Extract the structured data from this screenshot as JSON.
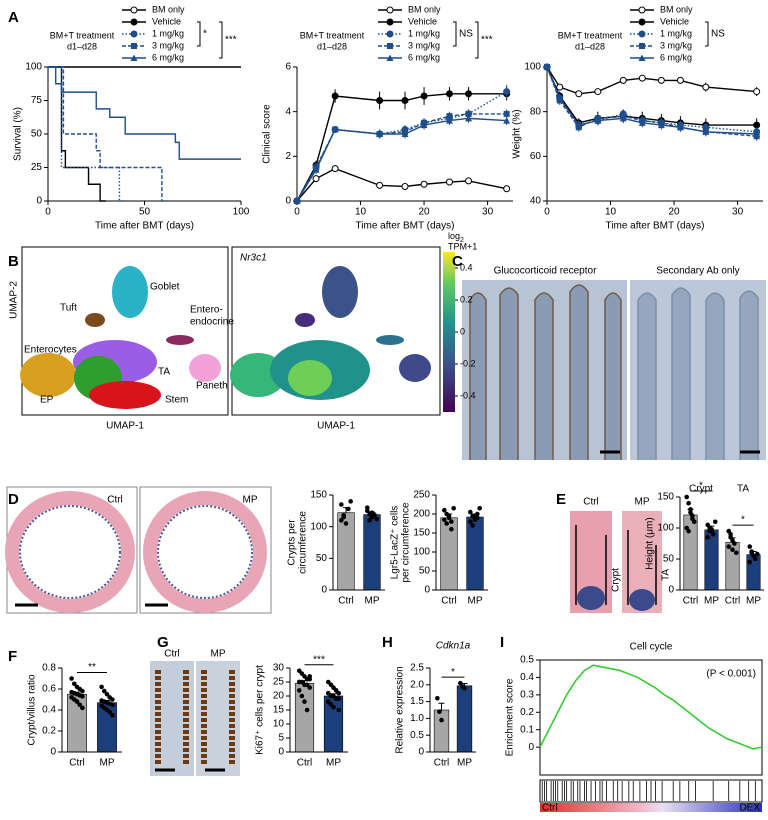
{
  "panel_labels": [
    "A",
    "B",
    "C",
    "D",
    "E",
    "F",
    "G",
    "H",
    "I"
  ],
  "images": {
    "B": {
      "clusters": [
        [
          "Goblet"
        ],
        [
          "Tuft"
        ],
        [
          "Entero-",
          "endocrine"
        ],
        [
          "Enterocytes"
        ],
        [
          "TA"
        ],
        [
          "Paneth"
        ],
        [
          "EP"
        ],
        [
          "Stem"
        ]
      ],
      "gene": "Nr3c1",
      "xlabel": "UMAP-1",
      "ylabel": "UMAP-2",
      "colorbar_title": [
        "log",
        "2",
        "TPM+1"
      ],
      "colorbar_lim": [
        -0.5,
        0.5
      ],
      "colorbar_ticks": [
        0.4,
        0.2,
        0,
        -0.2,
        -0.4
      ]
    },
    "C": {
      "titles": [
        "Glucocorticoid receptor",
        "Secondary Ab only"
      ]
    },
    "D": {
      "labels": [
        "Ctrl",
        "MP"
      ]
    },
    "E": {
      "labels": [
        "Ctrl",
        "MP"
      ],
      "regions": [
        "Crypt",
        "TA"
      ]
    },
    "G": {
      "labels": [
        "Ctrl",
        "MP"
      ]
    }
  },
  "chart_data": [
    {
      "type": "line",
      "legend_title": [
        "BM+T treatment",
        "d1–d28"
      ],
      "significance": [
        "*",
        "***"
      ],
      "point_markers": false,
      "xlabel": "Time after BMT (days)",
      "ylabel": "Survival (%)",
      "xlim": [
        0,
        100
      ],
      "xticks": [
        0,
        50,
        100
      ],
      "ylim": [
        0,
        100
      ],
      "yticks": [
        0,
        25,
        50,
        75,
        100
      ],
      "series": [
        {
          "name": "BM only",
          "color": "#000000",
          "marker": "open-circle",
          "dash": "solid",
          "x": [
            0,
            100
          ],
          "values": [
            100,
            100
          ]
        },
        {
          "name": "Vehicle",
          "color": "#000000",
          "marker": "circle",
          "dash": "solid",
          "x": [
            0,
            7,
            7,
            9,
            9,
            21,
            21,
            27,
            27,
            30
          ],
          "values": [
            100,
            100,
            37.5,
            37.5,
            25,
            25,
            12.5,
            12.5,
            0,
            0
          ]
        },
        {
          "name": "1 mg/kg",
          "color": "#1f4e8c",
          "marker": "circle",
          "dash": "dotted",
          "x": [
            0,
            7,
            7,
            37,
            37,
            40
          ],
          "values": [
            100,
            100,
            25,
            25,
            0,
            0
          ]
        },
        {
          "name": "3 mg/kg",
          "color": "#1f4e8c",
          "marker": "square",
          "dash": "dashed",
          "x": [
            0,
            8,
            8,
            25,
            25,
            27,
            27,
            59,
            59,
            62
          ],
          "values": [
            100,
            100,
            50,
            50,
            37.5,
            37.5,
            25,
            25,
            0,
            0
          ]
        },
        {
          "name": "6 mg/kg",
          "color": "#1f4e8c",
          "marker": "triangle",
          "dash": "solid",
          "x": [
            0,
            4,
            4,
            7,
            7,
            25,
            25,
            32,
            32,
            40,
            40,
            66,
            66,
            68,
            68,
            100
          ],
          "values": [
            100,
            100,
            87.5,
            87.5,
            81.25,
            81.25,
            68.75,
            68.75,
            62.5,
            62.5,
            50,
            50,
            43.75,
            43.75,
            31.25,
            31.25
          ]
        }
      ]
    },
    {
      "type": "line",
      "legend_title": [
        "BM+T treatment",
        "d1–d28"
      ],
      "significance": [
        "NS",
        "***"
      ],
      "xlabel": "Time after BMT (days)",
      "ylabel": "Clinical score",
      "xlim": [
        0,
        34
      ],
      "xticks": [
        0,
        10,
        20,
        30
      ],
      "ylim": [
        0,
        6
      ],
      "yticks": [
        0,
        2,
        4,
        6
      ],
      "x": [
        0,
        3,
        6,
        13,
        17,
        20,
        24,
        27,
        33
      ],
      "series": [
        {
          "name": "BM only",
          "color": "#000000",
          "marker": "open-circle",
          "dash": "solid",
          "values": [
            0,
            1.0,
            1.45,
            0.7,
            0.65,
            0.75,
            0.85,
            0.9,
            0.55
          ],
          "errors": [
            0,
            0.15,
            0.1,
            0.15,
            0.1,
            0.1,
            0.1,
            0.1,
            0.15
          ]
        },
        {
          "name": "Vehicle",
          "color": "#000000",
          "marker": "circle",
          "dash": "solid",
          "values": [
            0,
            1.6,
            4.7,
            4.5,
            4.5,
            4.7,
            4.8,
            4.8,
            4.8
          ],
          "errors": [
            0,
            0.2,
            0.3,
            0.4,
            0.4,
            0.4,
            0.3,
            0.3,
            0.3
          ]
        },
        {
          "name": "1 mg/kg",
          "color": "#1f4e8c",
          "marker": "circle",
          "dash": "dotted",
          "values": [
            0,
            1.5,
            3.2,
            3.0,
            3.2,
            3.5,
            3.7,
            3.9,
            4.9
          ],
          "errors": [
            0,
            0.2,
            0.15,
            0.2,
            0.2,
            0.2,
            0.2,
            0.2,
            0.3
          ]
        },
        {
          "name": "3 mg/kg",
          "color": "#1f4e8c",
          "marker": "square",
          "dash": "dashed",
          "values": [
            0,
            1.5,
            3.2,
            3.0,
            3.1,
            3.5,
            3.8,
            3.9,
            3.9
          ],
          "errors": [
            0,
            0.2,
            0.15,
            0.2,
            0.2,
            0.2,
            0.2,
            0.2,
            0.2
          ]
        },
        {
          "name": "6 mg/kg",
          "color": "#1f4e8c",
          "marker": "triangle",
          "dash": "solid",
          "values": [
            0,
            1.4,
            3.2,
            3.0,
            3.0,
            3.4,
            3.6,
            3.7,
            3.6
          ],
          "errors": [
            0,
            0.2,
            0.15,
            0.2,
            0.2,
            0.2,
            0.2,
            0.2,
            0.2
          ]
        }
      ]
    },
    {
      "type": "line",
      "legend_title": [
        "BM+T treatment",
        "d1–d28"
      ],
      "significance": [
        "NS"
      ],
      "xlabel": "Time after BMT (days)",
      "ylabel": "Weight (%)",
      "xlim": [
        0,
        34
      ],
      "xticks": [
        0,
        10,
        20,
        30
      ],
      "ylim": [
        40,
        100
      ],
      "yticks": [
        40,
        60,
        80,
        100
      ],
      "x": [
        0,
        2,
        5,
        8,
        12,
        15,
        18,
        21,
        25,
        33
      ],
      "series": [
        {
          "name": "BM only",
          "color": "#000000",
          "marker": "open-circle",
          "dash": "solid",
          "values": [
            100,
            91,
            88,
            89,
            94,
            95,
            94,
            94,
            91,
            89
          ],
          "errors": [
            0,
            1,
            1,
            1,
            1,
            1,
            1,
            1,
            2,
            2
          ]
        },
        {
          "name": "Vehicle",
          "color": "#000000",
          "marker": "circle",
          "dash": "solid",
          "values": [
            100,
            87,
            75,
            77,
            78,
            77,
            76,
            75,
            74,
            74
          ],
          "errors": [
            0,
            2,
            2,
            3,
            3,
            3,
            3,
            3,
            3,
            3
          ]
        },
        {
          "name": "1 mg/kg",
          "color": "#1f4e8c",
          "marker": "circle",
          "dash": "dotted",
          "values": [
            100,
            86,
            74,
            76,
            79,
            76,
            75,
            74,
            73,
            71
          ],
          "errors": [
            0,
            2,
            2,
            2,
            2,
            2,
            2,
            2,
            2,
            2
          ]
        },
        {
          "name": "3 mg/kg",
          "color": "#1f4e8c",
          "marker": "square",
          "dash": "dashed",
          "values": [
            100,
            85,
            73,
            77,
            78,
            76,
            75,
            73,
            71,
            69
          ],
          "errors": [
            0,
            2,
            2,
            2,
            2,
            2,
            2,
            2,
            2,
            2
          ]
        },
        {
          "name": "6 mg/kg",
          "color": "#1f4e8c",
          "marker": "triangle",
          "dash": "solid",
          "values": [
            100,
            86,
            74,
            76,
            77,
            75,
            74,
            73,
            71,
            70
          ],
          "errors": [
            0,
            2,
            2,
            2,
            2,
            2,
            2,
            2,
            2,
            2
          ]
        }
      ]
    },
    {
      "type": "bar",
      "ylabel": [
        "Crypts per",
        "circumference"
      ],
      "categories": [
        "Ctrl",
        "MP"
      ],
      "values": [
        122,
        119
      ],
      "errors": [
        8,
        4
      ],
      "colors": [
        "#a6a6a6",
        "#1c3f7c"
      ],
      "points": [
        [
          135,
          118,
          105,
          128,
          140,
          110,
          115
        ],
        [
          130,
          120,
          115,
          118,
          112,
          125,
          110,
          122,
          119
        ]
      ],
      "ylim": [
        0,
        150
      ],
      "yticks": [
        0,
        50,
        100,
        150
      ]
    },
    {
      "type": "bar",
      "ylabel": [
        "Lgr5-LacZ⁺ cells",
        "per circumference"
      ],
      "categories": [
        "Ctrl",
        "MP"
      ],
      "values": [
        190,
        192
      ],
      "errors": [
        10,
        8
      ],
      "colors": [
        "#a6a6a6",
        "#1c3f7c"
      ],
      "points": [
        [
          210,
          175,
          195,
          160,
          215,
          185,
          200,
          190,
          180
        ],
        [
          205,
          170,
          190,
          200,
          215,
          180,
          195,
          185,
          190
        ]
      ],
      "ylim": [
        0,
        250
      ],
      "yticks": [
        0,
        50,
        100,
        150,
        200,
        250
      ]
    },
    {
      "type": "bar",
      "ylabel": [
        "Height (μm)"
      ],
      "groups": [
        "Crypt",
        "TA"
      ],
      "categories": [
        "Ctrl",
        "MP",
        "Ctrl",
        "MP"
      ],
      "values": [
        121,
        97,
        77,
        57
      ],
      "errors": [
        9,
        6,
        7,
        5
      ],
      "colors": [
        "#a6a6a6",
        "#1c3f7c",
        "#a6a6a6",
        "#1c3f7c"
      ],
      "points": [
        [
          150,
          140,
          125,
          120,
          110,
          100,
          95,
          130,
          115
        ],
        [
          105,
          100,
          95,
          90,
          110,
          85,
          95,
          98
        ],
        [
          95,
          90,
          80,
          75,
          60,
          70,
          85,
          65
        ],
        [
          70,
          62,
          55,
          50,
          58,
          45,
          60,
          55
        ]
      ],
      "significance": [
        "*",
        "*"
      ],
      "ylim": [
        0,
        150
      ],
      "yticks": [
        0,
        50,
        100,
        150
      ]
    },
    {
      "type": "bar",
      "ylabel": [
        "Crypt/villus ratio"
      ],
      "categories": [
        "Ctrl",
        "MP"
      ],
      "values": [
        0.55,
        0.47
      ],
      "errors": [
        0.02,
        0.02
      ],
      "colors": [
        "#a6a6a6",
        "#1c3f7c"
      ],
      "points": [
        [
          0.7,
          0.65,
          0.62,
          0.6,
          0.58,
          0.57,
          0.56,
          0.55,
          0.54,
          0.53,
          0.52,
          0.5,
          0.48,
          0.45,
          0.42
        ],
        [
          0.62,
          0.58,
          0.55,
          0.52,
          0.5,
          0.49,
          0.48,
          0.47,
          0.46,
          0.45,
          0.44,
          0.42,
          0.4,
          0.38,
          0.35
        ]
      ],
      "significance": [
        "**"
      ],
      "ylim": [
        0,
        0.8
      ],
      "yticks": [
        0,
        0.2,
        0.4,
        0.6,
        0.8
      ]
    },
    {
      "type": "bar",
      "ylabel": [
        "Ki67⁺ cells per crypt"
      ],
      "categories": [
        "Ctrl",
        "MP"
      ],
      "values": [
        24.5,
        20
      ],
      "errors": [
        1,
        0.8
      ],
      "colors": [
        "#a6a6a6",
        "#1c3f7c"
      ],
      "points": [
        [
          29,
          28,
          27,
          26,
          26,
          25,
          25,
          24,
          24,
          23,
          22,
          20,
          18,
          15,
          27,
          25
        ],
        [
          25,
          24,
          23,
          22,
          21,
          21,
          20,
          20,
          19,
          19,
          18,
          17,
          16,
          22,
          15,
          18
        ]
      ],
      "significance": [
        "***"
      ],
      "ylim": [
        0,
        30
      ],
      "yticks": [
        0,
        5,
        10,
        15,
        20,
        25,
        30
      ]
    },
    {
      "type": "bar",
      "title": "Cdkn1a",
      "ylabel": [
        "Relative expression"
      ],
      "categories": [
        "Ctrl",
        "MP"
      ],
      "values": [
        1.25,
        1.97
      ],
      "errors": [
        0.2,
        0.07
      ],
      "colors": [
        "#a6a6a6",
        "#1c3f7c"
      ],
      "points": [
        [
          1.6,
          1.2,
          0.95
        ],
        [
          2.05,
          1.95,
          1.9
        ]
      ],
      "significance": [
        "*"
      ],
      "ylim": [
        0,
        2.5
      ],
      "yticks": [
        0,
        0.5,
        {
          "value": 1,
          "label": "1.0"
        },
        1.5,
        {
          "value": 2,
          "label": "2.0"
        },
        2.5
      ]
    },
    {
      "type": "enrichment",
      "title": "Cell cycle",
      "ylabel": "Enrichment score",
      "annotation": "(P < 0.001)",
      "labels": [
        "Ctrl",
        "DEX"
      ],
      "color": "#33cc33",
      "xlim": [
        0,
        1
      ],
      "ylim": [
        -0.16,
        0.5
      ],
      "yticks": [
        0,
        0.1,
        0.2,
        0.3,
        0.4,
        0.5
      ],
      "x": [
        0,
        0.04,
        0.08,
        0.12,
        0.16,
        0.2,
        0.24,
        0.28,
        0.32,
        0.36,
        0.4,
        0.44,
        0.48,
        0.52,
        0.56,
        0.6,
        0.64,
        0.68,
        0.72,
        0.76,
        0.8,
        0.84,
        0.88,
        0.92,
        0.96,
        1
      ],
      "values": [
        0,
        0.1,
        0.2,
        0.3,
        0.38,
        0.44,
        0.47,
        0.46,
        0.45,
        0.44,
        0.42,
        0.4,
        0.37,
        0.34,
        0.3,
        0.27,
        0.23,
        0.19,
        0.15,
        0.11,
        0.08,
        0.05,
        0.03,
        0.01,
        -0.01,
        0
      ],
      "hits": [
        0.01,
        0.02,
        0.03,
        0.05,
        0.06,
        0.07,
        0.08,
        0.1,
        0.11,
        0.12,
        0.14,
        0.15,
        0.17,
        0.18,
        0.2,
        0.21,
        0.23,
        0.25,
        0.27,
        0.28,
        0.3,
        0.33,
        0.35,
        0.37,
        0.4,
        0.42,
        0.45,
        0.48,
        0.5,
        0.52,
        0.55,
        0.6,
        0.63,
        0.67,
        0.7,
        0.78,
        0.85,
        0.9,
        0.94,
        0.97
      ]
    }
  ]
}
